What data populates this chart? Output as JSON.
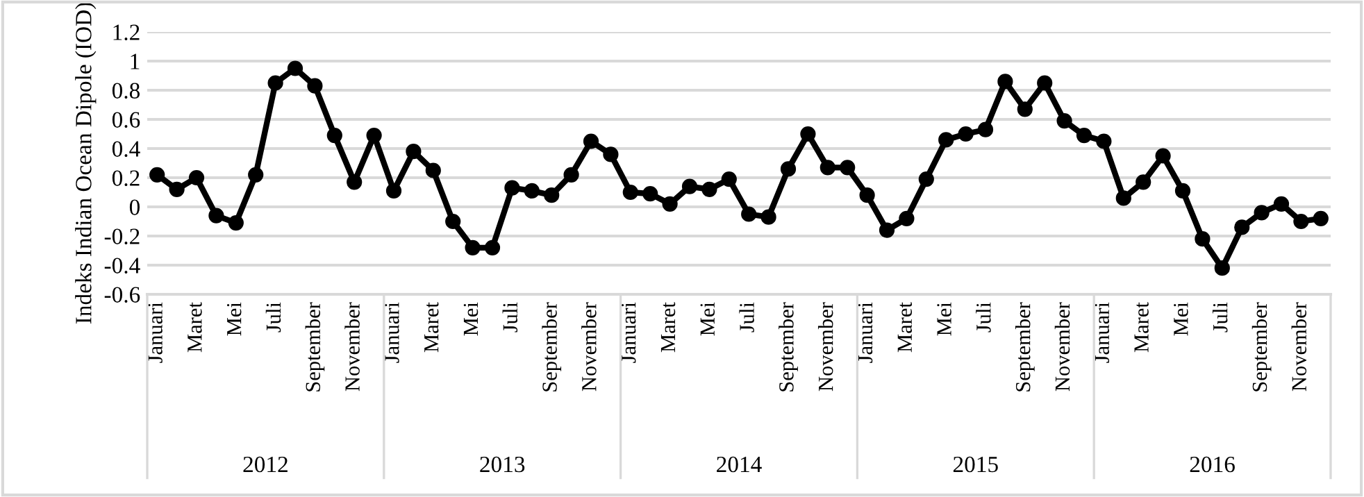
{
  "chart_data": {
    "type": "line",
    "ylabel": "Indeks Indian Ocean Dipole (IOD)",
    "categories": [
      "Januari",
      null,
      "Maret",
      null,
      "Mei",
      null,
      "Juli",
      null,
      "September",
      null,
      "November",
      null,
      "Januari",
      null,
      "Maret",
      null,
      "Mei",
      null,
      "Juli",
      null,
      "September",
      null,
      "November",
      null,
      "Januari",
      null,
      "Maret",
      null,
      "Mei",
      null,
      "Juli",
      null,
      "September",
      null,
      "November",
      null,
      "Januari",
      null,
      "Maret",
      null,
      "Mei",
      null,
      "Juli",
      null,
      "September",
      null,
      "November",
      null,
      "Januari",
      null,
      "Maret",
      null,
      "Mei",
      null,
      "Juli",
      null,
      "September",
      null,
      "November",
      null
    ],
    "series": [
      {
        "color": "#000000",
        "values": [
          0.22,
          0.12,
          0.2,
          -0.06,
          -0.11,
          0.22,
          0.85,
          0.95,
          0.83,
          0.49,
          0.17,
          0.49,
          0.11,
          0.38,
          0.25,
          -0.1,
          -0.28,
          -0.28,
          0.13,
          0.11,
          0.08,
          0.22,
          0.45,
          0.36,
          0.1,
          0.09,
          0.02,
          0.14,
          0.12,
          0.19,
          -0.05,
          -0.07,
          0.26,
          0.5,
          0.27,
          0.27,
          0.08,
          -0.16,
          -0.08,
          0.19,
          0.46,
          0.5,
          0.53,
          0.86,
          0.67,
          0.85,
          0.59,
          0.49,
          0.45,
          0.06,
          0.17,
          0.35,
          0.11,
          -0.22,
          -0.42,
          -0.14,
          -0.04,
          0.02,
          -0.1,
          -0.08
        ]
      }
    ],
    "annotations": [
      "2012",
      "2013",
      "2014",
      "2015",
      "2016"
    ],
    "ylim": [
      -0.6,
      1.2
    ],
    "yticks": [
      -0.6,
      -0.4,
      -0.2,
      0,
      0.2,
      0.4,
      0.6,
      0.8,
      1,
      1.2
    ],
    "grid": "y",
    "marker": "circle",
    "line_style": "solid",
    "legend": false
  }
}
